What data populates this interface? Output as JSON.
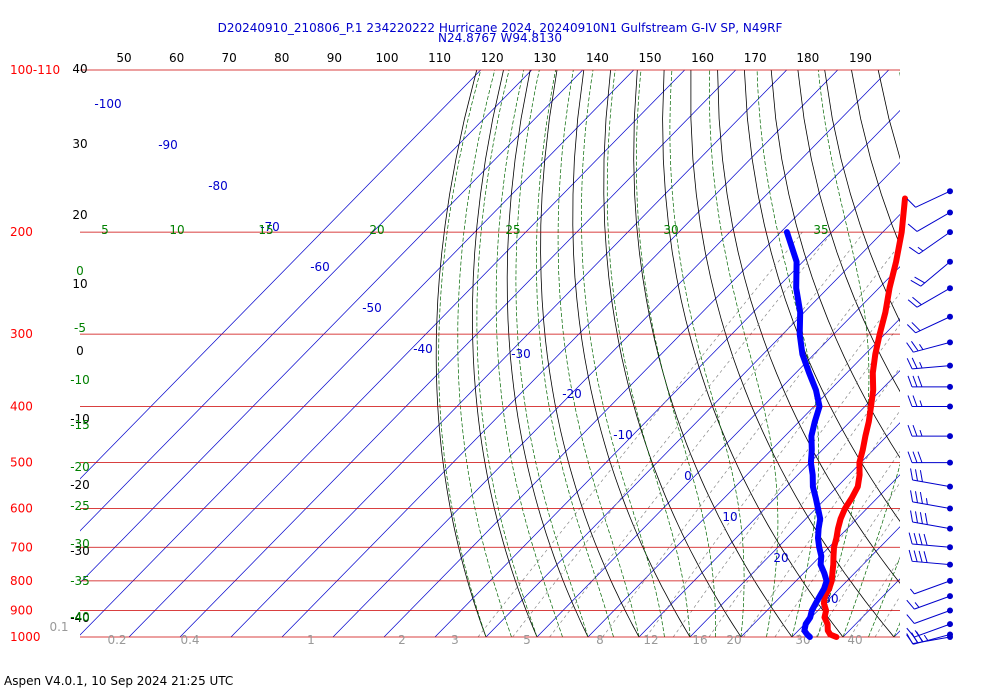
{
  "title_line1": "D20240910_210806_P.1 234220222 Hurricane 2024, 20240910N1 Gulfstream G-IV SP, N49RF",
  "title_line2": "N24.8767 W94.8130",
  "footer": "Aspen V4.0.1, 10 Sep 2024  21:25 UTC",
  "colors": {
    "temperature": "#ff0000",
    "dewpoint": "#0000ff",
    "isobar": "#cc0000",
    "isotherm": "#0000cc",
    "dry_adiabat": "#000000",
    "moist_adiabat": "#006600",
    "mixing_ratio": "#888888",
    "wind_barb": "#0000cc"
  },
  "chart_data": {
    "type": "line",
    "chart_kind": "skew-T log-p",
    "y_axis_pressure_hPa": [
      "100-110",
      "200",
      "300",
      "400",
      "500",
      "600",
      "700",
      "800",
      "900",
      "1000"
    ],
    "top_axis_ticks": [
      "50",
      "60",
      "70",
      "80",
      "90",
      "100",
      "110",
      "120",
      "130",
      "140",
      "150",
      "160",
      "170",
      "180",
      "190"
    ],
    "left_black_labels": [
      "40",
      "30",
      "20",
      "10",
      "0",
      "-10",
      "-20",
      "-30",
      "-40"
    ],
    "left_green_labels": [
      "0",
      "-5",
      "-10",
      "-15",
      "-20",
      "-25",
      "-30",
      "-35",
      "-40"
    ],
    "isotherm_labels": [
      "-100",
      "-90",
      "-80",
      "-70",
      "-60",
      "-50",
      "-40",
      "-30",
      "-20",
      "-10",
      "0",
      "10",
      "20",
      "30"
    ],
    "moist_adiabat_labels": [
      "5",
      "10",
      "15",
      "20",
      "25",
      "30",
      "35"
    ],
    "mixing_ratio_labels": [
      "0.1",
      "0.2",
      "0.4",
      "1",
      "2",
      "3",
      "5",
      "8",
      "12",
      "16",
      "20",
      "30",
      "40"
    ],
    "series": [
      {
        "key": "temperature",
        "points": [
          [
            1000,
            28.7
          ],
          [
            990,
            27.0
          ],
          [
            975,
            25.8
          ],
          [
            950,
            24.5
          ],
          [
            925,
            22.6
          ],
          [
            900,
            21.6
          ],
          [
            875,
            19.8
          ],
          [
            850,
            18.6
          ],
          [
            825,
            18.0
          ],
          [
            800,
            17.0
          ],
          [
            775,
            15.6
          ],
          [
            750,
            14.2
          ],
          [
            725,
            12.6
          ],
          [
            700,
            11.0
          ],
          [
            675,
            9.7
          ],
          [
            650,
            8.2
          ],
          [
            625,
            6.8
          ],
          [
            600,
            5.7
          ],
          [
            575,
            5.0
          ],
          [
            550,
            4.0
          ],
          [
            525,
            2.1
          ],
          [
            500,
            -0.3
          ],
          [
            475,
            -2.1
          ],
          [
            450,
            -4.2
          ],
          [
            425,
            -6.3
          ],
          [
            400,
            -8.8
          ],
          [
            375,
            -11.5
          ],
          [
            350,
            -14.9
          ],
          [
            325,
            -18.0
          ],
          [
            300,
            -21.0
          ],
          [
            275,
            -24.1
          ],
          [
            250,
            -27.9
          ],
          [
            225,
            -31.7
          ],
          [
            200,
            -36.3
          ],
          [
            175,
            -42.1
          ]
        ]
      },
      {
        "key": "dewpoint",
        "points": [
          [
            1000,
            23.5
          ],
          [
            990,
            22.5
          ],
          [
            975,
            21.2
          ],
          [
            950,
            20.2
          ],
          [
            925,
            19.8
          ],
          [
            900,
            18.8
          ],
          [
            875,
            18.2
          ],
          [
            850,
            17.6
          ],
          [
            825,
            17.0
          ],
          [
            800,
            16.0
          ],
          [
            775,
            14.0
          ],
          [
            750,
            11.7
          ],
          [
            725,
            10.2
          ],
          [
            700,
            8.1
          ],
          [
            675,
            6.1
          ],
          [
            650,
            4.4
          ],
          [
            625,
            2.8
          ],
          [
            600,
            0.4
          ],
          [
            575,
            -2.1
          ],
          [
            550,
            -4.8
          ],
          [
            525,
            -7.1
          ],
          [
            500,
            -9.8
          ],
          [
            475,
            -12.1
          ],
          [
            450,
            -14.8
          ],
          [
            425,
            -16.9
          ],
          [
            400,
            -18.9
          ],
          [
            375,
            -22.7
          ],
          [
            350,
            -27.4
          ],
          [
            325,
            -32.3
          ],
          [
            300,
            -36.7
          ],
          [
            275,
            -40.8
          ],
          [
            250,
            -46.2
          ],
          [
            225,
            -51.2
          ],
          [
            200,
            -58.8
          ]
        ]
      }
    ],
    "wind_barbs": [
      {
        "p": 1000,
        "speed_kt": 30,
        "dir_deg": 260
      },
      {
        "p": 990,
        "speed_kt": 35,
        "dir_deg": 255
      },
      {
        "p": 950,
        "speed_kt": 15,
        "dir_deg": 250
      },
      {
        "p": 900,
        "speed_kt": 10,
        "dir_deg": 250
      },
      {
        "p": 850,
        "speed_kt": 15,
        "dir_deg": 250
      },
      {
        "p": 800,
        "speed_kt": 5,
        "dir_deg": 250
      },
      {
        "p": 750,
        "speed_kt": 40,
        "dir_deg": 275
      },
      {
        "p": 700,
        "speed_kt": 40,
        "dir_deg": 275
      },
      {
        "p": 650,
        "speed_kt": 40,
        "dir_deg": 280
      },
      {
        "p": 600,
        "speed_kt": 35,
        "dir_deg": 280
      },
      {
        "p": 550,
        "speed_kt": 30,
        "dir_deg": 280
      },
      {
        "p": 500,
        "speed_kt": 30,
        "dir_deg": 270
      },
      {
        "p": 450,
        "speed_kt": 25,
        "dir_deg": 270
      },
      {
        "p": 400,
        "speed_kt": 25,
        "dir_deg": 270
      },
      {
        "p": 370,
        "speed_kt": 30,
        "dir_deg": 270
      },
      {
        "p": 340,
        "speed_kt": 25,
        "dir_deg": 265
      },
      {
        "p": 310,
        "speed_kt": 25,
        "dir_deg": 255
      },
      {
        "p": 280,
        "speed_kt": 20,
        "dir_deg": 245
      },
      {
        "p": 250,
        "speed_kt": 20,
        "dir_deg": 240
      },
      {
        "p": 225,
        "speed_kt": 20,
        "dir_deg": 230
      },
      {
        "p": 200,
        "speed_kt": 15,
        "dir_deg": 235
      },
      {
        "p": 185,
        "speed_kt": 10,
        "dir_deg": 240
      },
      {
        "p": 170,
        "speed_kt": 10,
        "dir_deg": 245
      }
    ]
  }
}
